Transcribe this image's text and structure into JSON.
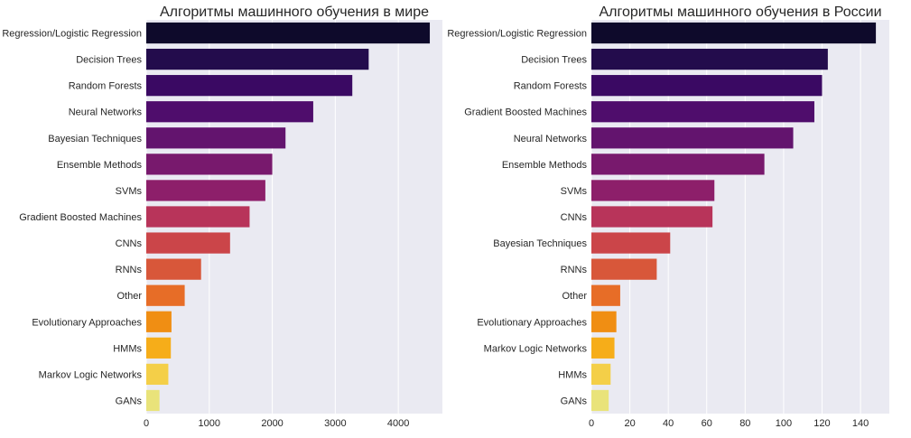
{
  "chart_data": [
    {
      "type": "bar",
      "orientation": "horizontal",
      "title": "Алгоритмы машинного обучения в мире",
      "xlabel": "",
      "ylabel": "",
      "xlim": [
        0,
        4700
      ],
      "xticks": [
        "0",
        "1000",
        "2000",
        "3000",
        "4000"
      ],
      "grid": true,
      "categories": [
        "Regression/Logistic Regression",
        "Decision Trees",
        "Random Forests",
        "Neural Networks",
        "Bayesian Techniques",
        "Ensemble Methods",
        "SVMs",
        "Gradient Boosted Machines",
        "CNNs",
        "RNNs",
        "Other",
        "Evolutionary Approaches",
        "HMMs",
        "Markov Logic Networks",
        "GANs"
      ],
      "values": [
        4500,
        3530,
        3270,
        2650,
        2210,
        2000,
        1890,
        1640,
        1330,
        870,
        610,
        400,
        390,
        350,
        210
      ]
    },
    {
      "type": "bar",
      "orientation": "horizontal",
      "title": "Алгоритмы машинного обучения в России",
      "xlabel": "",
      "ylabel": "",
      "xlim": [
        0,
        155
      ],
      "xticks": [
        "0",
        "20",
        "40",
        "60",
        "80",
        "100",
        "120",
        "140"
      ],
      "grid": true,
      "categories": [
        "Regression/Logistic Regression",
        "Decision Trees",
        "Random Forests",
        "Gradient Boosted Machines",
        "Neural Networks",
        "Ensemble Methods",
        "SVMs",
        "CNNs",
        "Bayesian Techniques",
        "RNNs",
        "Other",
        "Evolutionary Approaches",
        "Markov Logic Networks",
        "HMMs",
        "GANs"
      ],
      "values": [
        148,
        123,
        120,
        116,
        105,
        90,
        64,
        63,
        41,
        34,
        15,
        13,
        12,
        10,
        9
      ]
    }
  ],
  "palette": [
    "#0e0a2b",
    "#230c4c",
    "#3a0963",
    "#4f0d6c",
    "#63146e",
    "#78196d",
    "#8d1f6a",
    "#a22863",
    "#b8345a",
    "#cb4549",
    "#d8573a",
    "#e76d27",
    "#f08e13",
    "#f6ad19",
    "#f4cf48",
    "#e9e37a"
  ],
  "colors": {
    "plot_bg": "#eaeaf2",
    "grid": "#ffffff",
    "text": "#262626"
  }
}
